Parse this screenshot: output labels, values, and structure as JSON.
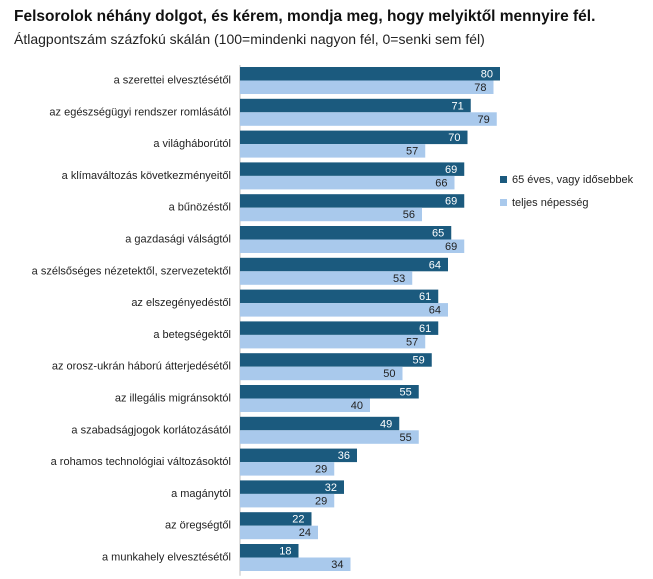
{
  "chart_data": {
    "type": "bar",
    "orientation": "horizontal",
    "title": "Felsorolok néhány dolgot, és kérem, mondja meg, hogy melyiktől mennyire fél.",
    "subtitle": "Átlagpontszám százfokú skálán (100=mindenki nagyon fél, 0=senki sem fél)",
    "categories": [
      "a szerettei elvesztésétől",
      "az egészségügyi rendszer romlásától",
      "a világháborútól",
      "a klímaváltozás következményeitől",
      "a bűnözéstől",
      "a gazdasági válságtól",
      "a szélsőséges nézetektől, szervezetektől",
      "az elszegényedéstől",
      "a betegségektől",
      "az orosz-ukrán háború átterjedésétől",
      "az illegális migránsoktól",
      "a szabadságjogok korlátozásától",
      "a rohamos technológiai változásoktól",
      "a magánytól",
      "az öregségtől",
      "a munkahely elvesztésétől"
    ],
    "series": [
      {
        "name": "65 éves, vagy idősebbek",
        "color": "#1b5a7e",
        "values": [
          80,
          71,
          70,
          69,
          69,
          65,
          64,
          61,
          61,
          59,
          55,
          49,
          36,
          32,
          22,
          18
        ]
      },
      {
        "name": "teljes népesség",
        "color": "#a9c9ec",
        "values": [
          78,
          79,
          57,
          66,
          56,
          69,
          53,
          64,
          57,
          50,
          40,
          55,
          29,
          29,
          24,
          34
        ]
      }
    ],
    "xlim": [
      0,
      100
    ],
    "legend": "right",
    "grid": false,
    "data_labels": true
  }
}
